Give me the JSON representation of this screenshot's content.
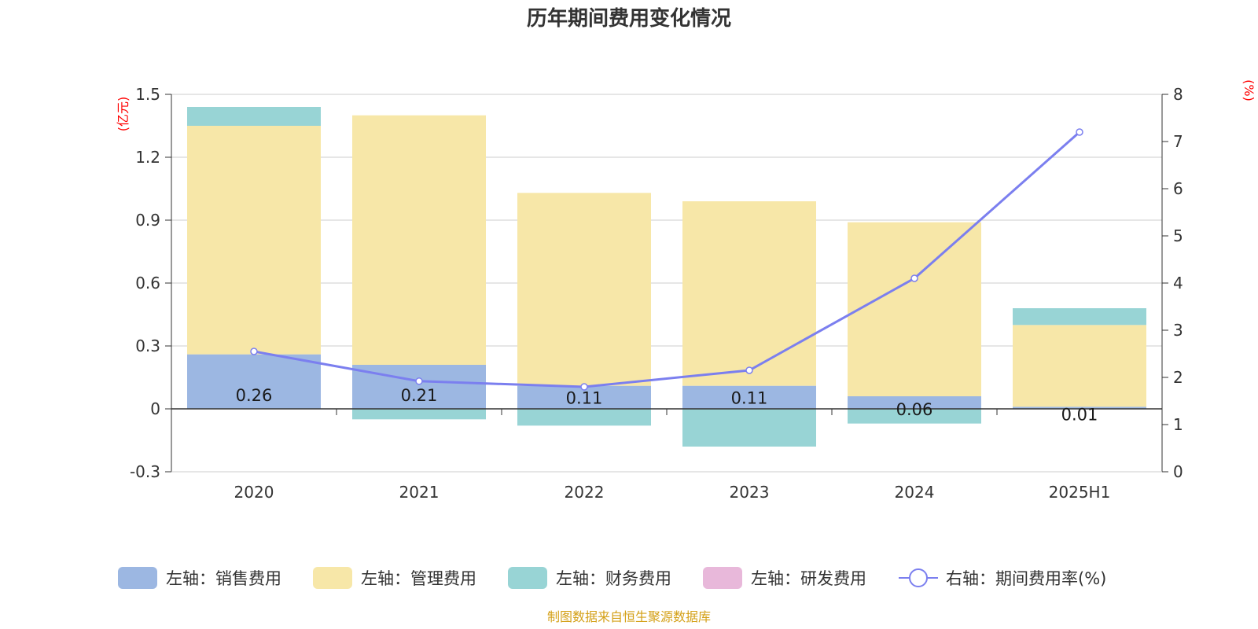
{
  "chart_data": {
    "type": "bar",
    "title": "历年期间费用变化情况",
    "categories": [
      "2020",
      "2021",
      "2022",
      "2023",
      "2024",
      "2025H1"
    ],
    "left_axis": {
      "unit": "(亿元)",
      "ylim": [
        -0.3,
        1.5
      ],
      "ticks": [
        "1.5",
        "1.2",
        "0.9",
        "0.6",
        "0.3",
        "0",
        "-0.3"
      ]
    },
    "right_axis": {
      "unit": "(%)",
      "ylim": [
        0,
        8
      ],
      "ticks": [
        "8",
        "7",
        "6",
        "5",
        "4",
        "3",
        "2",
        "1",
        "0"
      ]
    },
    "stacked": true,
    "series": [
      {
        "name": "左轴：销售费用",
        "type": "bar",
        "axis": "left",
        "color": "#9cb7e2",
        "values": [
          0.26,
          0.21,
          0.11,
          0.11,
          0.06,
          0.01
        ],
        "labels": [
          "0.26",
          "0.21",
          "0.11",
          "0.11",
          "0.06",
          "0.01"
        ]
      },
      {
        "name": "左轴：管理费用",
        "type": "bar",
        "axis": "left",
        "color": "#f7e7a8",
        "values": [
          1.09,
          1.19,
          0.92,
          0.88,
          0.83,
          0.39
        ]
      },
      {
        "name": "左轴：财务费用",
        "type": "bar",
        "axis": "left",
        "color": "#98d4d5",
        "values": [
          0.09,
          -0.05,
          -0.08,
          -0.18,
          -0.07,
          0.08
        ]
      },
      {
        "name": "左轴：研发费用",
        "type": "bar",
        "axis": "left",
        "color": "#e8b8da",
        "values": [
          0,
          0,
          0,
          0,
          0,
          0
        ]
      },
      {
        "name": "右轴：期间费用率(%)",
        "type": "line",
        "axis": "right",
        "color": "#7b7fef",
        "values": [
          2.55,
          1.92,
          1.8,
          2.15,
          4.1,
          7.2
        ]
      }
    ],
    "grid": true,
    "legend_position": "bottom"
  },
  "source": "制图数据来自恒生聚源数据库"
}
